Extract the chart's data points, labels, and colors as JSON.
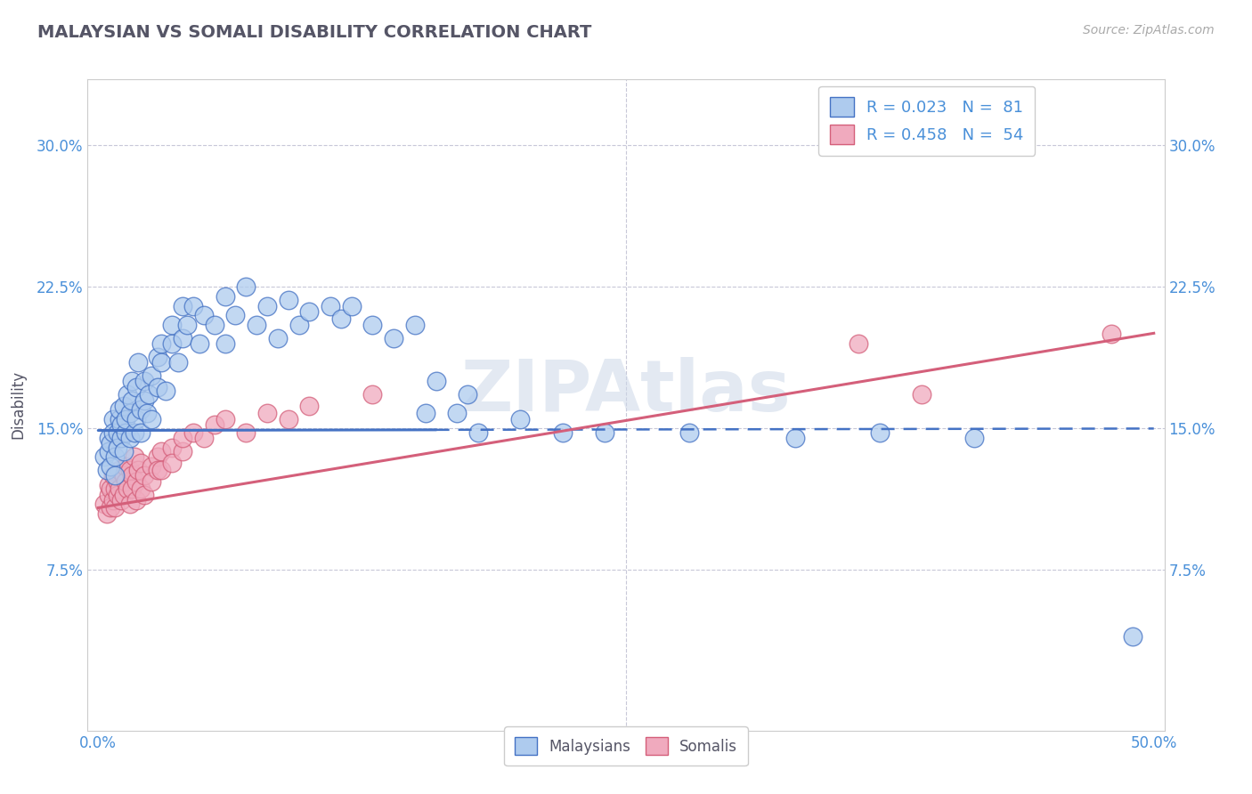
{
  "title": "MALAYSIAN VS SOMALI DISABILITY CORRELATION CHART",
  "source": "Source: ZipAtlas.com",
  "ylabel": "Disability",
  "xlabel": "",
  "xlim": [
    -0.005,
    0.505
  ],
  "ylim": [
    -0.01,
    0.335
  ],
  "xticks": [
    0.0,
    0.25,
    0.5
  ],
  "xticklabels": [
    "0.0%",
    "",
    "50.0%"
  ],
  "yticks": [
    0.075,
    0.15,
    0.225,
    0.3
  ],
  "yticklabels": [
    "7.5%",
    "15.0%",
    "22.5%",
    "30.0%"
  ],
  "legend_r1": "R = 0.023",
  "legend_n1": "N =  81",
  "legend_r2": "R = 0.458",
  "legend_n2": "N =  54",
  "color_malaysian": "#aecbee",
  "color_somali": "#f0aabe",
  "color_line_malaysian": "#4472c4",
  "color_line_somali": "#d45f7a",
  "color_grid": "#c8c8d8",
  "watermark": "ZIPAtlas",
  "background_color": "#ffffff",
  "title_color": "#555566",
  "axis_color": "#4a90d9",
  "malaysian_points": [
    [
      0.003,
      0.135
    ],
    [
      0.004,
      0.128
    ],
    [
      0.005,
      0.145
    ],
    [
      0.005,
      0.138
    ],
    [
      0.006,
      0.13
    ],
    [
      0.006,
      0.142
    ],
    [
      0.007,
      0.155
    ],
    [
      0.007,
      0.148
    ],
    [
      0.008,
      0.125
    ],
    [
      0.008,
      0.135
    ],
    [
      0.009,
      0.148
    ],
    [
      0.009,
      0.14
    ],
    [
      0.01,
      0.155
    ],
    [
      0.01,
      0.16
    ],
    [
      0.011,
      0.145
    ],
    [
      0.011,
      0.152
    ],
    [
      0.012,
      0.138
    ],
    [
      0.012,
      0.162
    ],
    [
      0.013,
      0.148
    ],
    [
      0.013,
      0.155
    ],
    [
      0.014,
      0.168
    ],
    [
      0.015,
      0.145
    ],
    [
      0.015,
      0.158
    ],
    [
      0.016,
      0.175
    ],
    [
      0.016,
      0.165
    ],
    [
      0.017,
      0.148
    ],
    [
      0.018,
      0.155
    ],
    [
      0.018,
      0.172
    ],
    [
      0.019,
      0.185
    ],
    [
      0.02,
      0.16
    ],
    [
      0.02,
      0.148
    ],
    [
      0.022,
      0.175
    ],
    [
      0.022,
      0.165
    ],
    [
      0.023,
      0.158
    ],
    [
      0.024,
      0.168
    ],
    [
      0.025,
      0.178
    ],
    [
      0.025,
      0.155
    ],
    [
      0.028,
      0.188
    ],
    [
      0.028,
      0.172
    ],
    [
      0.03,
      0.195
    ],
    [
      0.03,
      0.185
    ],
    [
      0.032,
      0.17
    ],
    [
      0.035,
      0.195
    ],
    [
      0.035,
      0.205
    ],
    [
      0.038,
      0.185
    ],
    [
      0.04,
      0.215
    ],
    [
      0.04,
      0.198
    ],
    [
      0.042,
      0.205
    ],
    [
      0.045,
      0.215
    ],
    [
      0.048,
      0.195
    ],
    [
      0.05,
      0.21
    ],
    [
      0.055,
      0.205
    ],
    [
      0.06,
      0.22
    ],
    [
      0.06,
      0.195
    ],
    [
      0.065,
      0.21
    ],
    [
      0.07,
      0.225
    ],
    [
      0.075,
      0.205
    ],
    [
      0.08,
      0.215
    ],
    [
      0.085,
      0.198
    ],
    [
      0.09,
      0.218
    ],
    [
      0.095,
      0.205
    ],
    [
      0.1,
      0.212
    ],
    [
      0.11,
      0.215
    ],
    [
      0.115,
      0.208
    ],
    [
      0.12,
      0.215
    ],
    [
      0.13,
      0.205
    ],
    [
      0.14,
      0.198
    ],
    [
      0.15,
      0.205
    ],
    [
      0.155,
      0.158
    ],
    [
      0.16,
      0.175
    ],
    [
      0.17,
      0.158
    ],
    [
      0.175,
      0.168
    ],
    [
      0.18,
      0.148
    ],
    [
      0.2,
      0.155
    ],
    [
      0.22,
      0.148
    ],
    [
      0.24,
      0.148
    ],
    [
      0.28,
      0.148
    ],
    [
      0.33,
      0.145
    ],
    [
      0.37,
      0.148
    ],
    [
      0.415,
      0.145
    ],
    [
      0.49,
      0.04
    ]
  ],
  "somali_points": [
    [
      0.003,
      0.11
    ],
    [
      0.004,
      0.105
    ],
    [
      0.005,
      0.115
    ],
    [
      0.005,
      0.12
    ],
    [
      0.006,
      0.108
    ],
    [
      0.006,
      0.118
    ],
    [
      0.007,
      0.112
    ],
    [
      0.007,
      0.125
    ],
    [
      0.008,
      0.118
    ],
    [
      0.008,
      0.108
    ],
    [
      0.009,
      0.122
    ],
    [
      0.009,
      0.115
    ],
    [
      0.01,
      0.128
    ],
    [
      0.01,
      0.118
    ],
    [
      0.011,
      0.112
    ],
    [
      0.012,
      0.125
    ],
    [
      0.012,
      0.115
    ],
    [
      0.013,
      0.13
    ],
    [
      0.013,
      0.122
    ],
    [
      0.014,
      0.118
    ],
    [
      0.015,
      0.128
    ],
    [
      0.015,
      0.11
    ],
    [
      0.016,
      0.125
    ],
    [
      0.016,
      0.118
    ],
    [
      0.017,
      0.135
    ],
    [
      0.018,
      0.122
    ],
    [
      0.018,
      0.112
    ],
    [
      0.019,
      0.128
    ],
    [
      0.02,
      0.118
    ],
    [
      0.02,
      0.132
    ],
    [
      0.022,
      0.125
    ],
    [
      0.022,
      0.115
    ],
    [
      0.025,
      0.13
    ],
    [
      0.025,
      0.122
    ],
    [
      0.028,
      0.135
    ],
    [
      0.028,
      0.128
    ],
    [
      0.03,
      0.138
    ],
    [
      0.03,
      0.128
    ],
    [
      0.035,
      0.14
    ],
    [
      0.035,
      0.132
    ],
    [
      0.04,
      0.138
    ],
    [
      0.04,
      0.145
    ],
    [
      0.045,
      0.148
    ],
    [
      0.05,
      0.145
    ],
    [
      0.055,
      0.152
    ],
    [
      0.06,
      0.155
    ],
    [
      0.07,
      0.148
    ],
    [
      0.08,
      0.158
    ],
    [
      0.09,
      0.155
    ],
    [
      0.1,
      0.162
    ],
    [
      0.13,
      0.168
    ],
    [
      0.36,
      0.195
    ],
    [
      0.39,
      0.168
    ],
    [
      0.48,
      0.2
    ]
  ],
  "line_mal_slope": 0.002,
  "line_mal_intercept": 0.149,
  "line_som_slope": 0.185,
  "line_som_intercept": 0.108
}
